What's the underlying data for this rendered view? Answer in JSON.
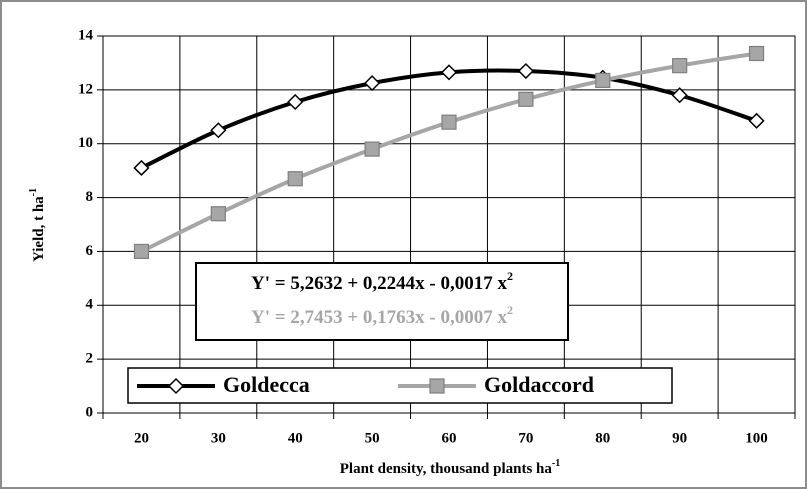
{
  "chart_data": {
    "type": "line",
    "xlabel": "Plant density, thousand plants ha",
    "xlabel_sup": "-1",
    "ylabel": "Yield, t ha",
    "ylabel_sup": "-1",
    "categories": [
      20,
      30,
      40,
      50,
      60,
      70,
      80,
      90,
      100
    ],
    "series": [
      {
        "name": "Goldecca",
        "color": "#000000",
        "marker": "diamond",
        "values": [
          9.1,
          10.5,
          11.55,
          12.25,
          12.65,
          12.7,
          12.45,
          11.8,
          10.85
        ]
      },
      {
        "name": "Goldaccord",
        "color": "#a6a6a6",
        "marker": "square",
        "values": [
          6.0,
          7.4,
          8.7,
          9.8,
          10.8,
          11.65,
          12.35,
          12.9,
          13.35
        ]
      }
    ],
    "annotations": [
      {
        "text": "Y' = 5,2632 + 0,2244x - 0,0017 x",
        "sup": "2",
        "color": "#000000"
      },
      {
        "text": "Y' = 2,7453 + 0,1763x - 0,0007 x",
        "sup": "2",
        "color": "#a6a6a6"
      }
    ],
    "ylim": [
      0,
      14
    ],
    "yticks": [
      0,
      2,
      4,
      6,
      8,
      10,
      12,
      14
    ],
    "grid": true,
    "legend": "bottom"
  }
}
